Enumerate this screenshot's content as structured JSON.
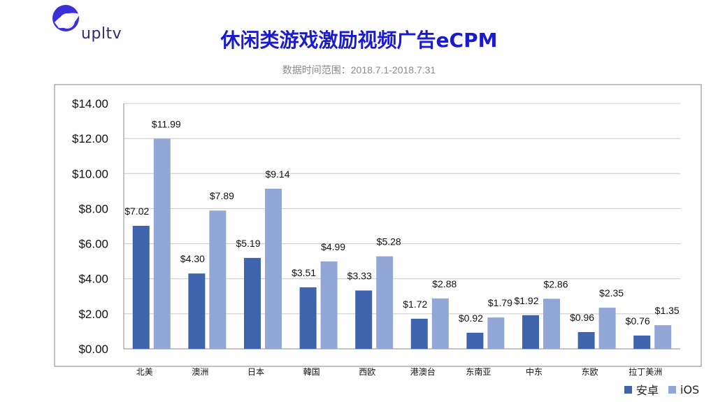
{
  "brand": {
    "name": "upltv"
  },
  "header": {
    "title": "休闲类游戏激励视频广告eCPM",
    "subtitle": "数据时间范围：2018.7.1-2018.7.31"
  },
  "colors": {
    "android": "#3f63ad",
    "ios": "#93a7d7",
    "title": "#1a1ad0",
    "grid": "#c8c8c8"
  },
  "chart_data": {
    "type": "bar",
    "categories": [
      "北美",
      "澳洲",
      "日本",
      "韓国",
      "西欧",
      "港澳台",
      "东南亚",
      "中东",
      "东欧",
      "拉丁美洲"
    ],
    "series": [
      {
        "name": "安卓",
        "values": [
          7.02,
          4.3,
          5.19,
          3.51,
          3.33,
          1.72,
          0.92,
          1.92,
          0.96,
          0.76
        ],
        "labels": [
          "$7.02",
          "$4.30",
          "$5.19",
          "$3.51",
          "$3.33",
          "$1.72",
          "$0.92",
          "$1.92",
          "$0.96",
          "$0.76"
        ]
      },
      {
        "name": "iOS",
        "values": [
          11.99,
          7.89,
          9.14,
          4.99,
          5.28,
          2.88,
          1.79,
          2.86,
          2.35,
          1.35
        ],
        "labels": [
          "$11.99",
          "$7.89",
          "$9.14",
          "$4.99",
          "$5.28",
          "$2.88",
          "$1.79",
          "$2.86",
          "$2.35",
          "$1.35"
        ]
      }
    ],
    "ylim": [
      0,
      14
    ],
    "yticks": [
      0,
      2,
      4,
      6,
      8,
      10,
      12,
      14
    ],
    "ytick_labels": [
      "$0.00",
      "$2.00",
      "$4.00",
      "$6.00",
      "$8.00",
      "$10.00",
      "$12.00",
      "$14.00"
    ],
    "grid": true,
    "legend_position": "bottom-right"
  }
}
